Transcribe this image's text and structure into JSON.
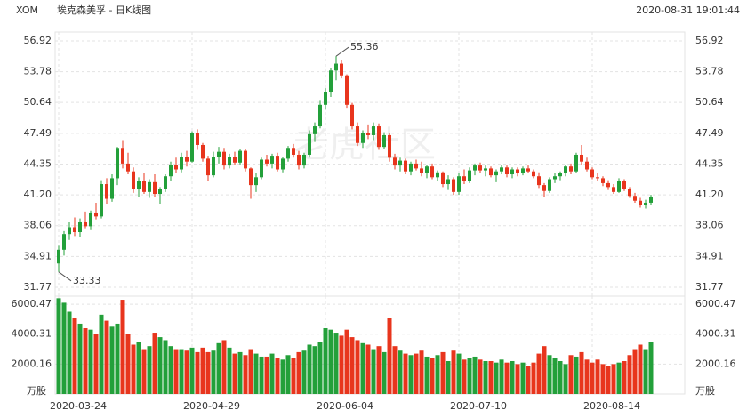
{
  "chart_data": {
    "type": "candlestick",
    "symbol": "XOM",
    "title": "埃克森美孚 - 日K线图",
    "timestamp": "2020-08-31 19:01:44",
    "watermark": "老虎社区",
    "up_color": "#23a03a",
    "down_color": "#e8351d",
    "categories": [
      "2020-03-24",
      null,
      null,
      null,
      null,
      null,
      null,
      null,
      null,
      null,
      null,
      null,
      null,
      null,
      null,
      null,
      null,
      null,
      null,
      null,
      null,
      null,
      null,
      null,
      null,
      "2020-04-29",
      null,
      null,
      null,
      null,
      null,
      null,
      null,
      null,
      null,
      null,
      null,
      null,
      null,
      null,
      null,
      null,
      null,
      null,
      null,
      null,
      null,
      null,
      null,
      null,
      "2020-06-04",
      null,
      null,
      null,
      null,
      null,
      null,
      null,
      null,
      null,
      null,
      null,
      null,
      null,
      null,
      null,
      null,
      null,
      null,
      null,
      null,
      null,
      null,
      null,
      null,
      "2020-07-10",
      null,
      null,
      null,
      null,
      null,
      null,
      null,
      null,
      null,
      null,
      null,
      null,
      null,
      null,
      null,
      null,
      null,
      null,
      null,
      null,
      null,
      null,
      null,
      null,
      "2020-08-14",
      null,
      null,
      null,
      null,
      null,
      null,
      null,
      null,
      null,
      null,
      null
    ],
    "candles": [
      [
        34.2,
        36.0,
        33.33,
        35.6
      ],
      [
        35.6,
        37.5,
        35.0,
        37.2
      ],
      [
        37.2,
        38.4,
        36.6,
        37.9
      ],
      [
        37.9,
        38.9,
        37.0,
        37.4
      ],
      [
        37.4,
        38.8,
        36.9,
        38.4
      ],
      [
        38.4,
        39.5,
        37.8,
        38.0
      ],
      [
        38.0,
        39.6,
        37.6,
        39.4
      ],
      [
        39.4,
        40.4,
        38.7,
        39.0
      ],
      [
        39.0,
        42.7,
        38.8,
        42.3
      ],
      [
        42.3,
        42.9,
        40.3,
        40.8
      ],
      [
        40.8,
        43.3,
        40.5,
        42.9
      ],
      [
        42.9,
        46.1,
        42.2,
        46.0
      ],
      [
        46.0,
        46.8,
        43.9,
        44.4
      ],
      [
        44.4,
        45.5,
        43.3,
        43.6
      ],
      [
        43.6,
        44.0,
        41.4,
        41.8
      ],
      [
        41.8,
        43.0,
        41.0,
        42.6
      ],
      [
        42.6,
        43.4,
        41.3,
        41.5
      ],
      [
        41.5,
        42.8,
        40.9,
        42.5
      ],
      [
        42.5,
        43.3,
        41.0,
        41.3
      ],
      [
        41.3,
        42.0,
        40.3,
        41.8
      ],
      [
        41.8,
        43.3,
        41.5,
        43.1
      ],
      [
        43.1,
        44.6,
        42.6,
        44.3
      ],
      [
        44.3,
        45.0,
        43.4,
        43.8
      ],
      [
        43.8,
        45.5,
        43.5,
        45.1
      ],
      [
        45.1,
        45.7,
        44.1,
        44.6
      ],
      [
        44.6,
        47.7,
        44.5,
        47.5
      ],
      [
        47.5,
        47.9,
        45.8,
        46.3
      ],
      [
        46.3,
        46.5,
        44.6,
        44.9
      ],
      [
        44.9,
        45.2,
        42.6,
        43.2
      ],
      [
        43.2,
        45.6,
        43.0,
        45.1
      ],
      [
        45.1,
        46.1,
        44.4,
        45.6
      ],
      [
        45.6,
        46.0,
        43.8,
        44.2
      ],
      [
        44.2,
        45.4,
        43.9,
        45.1
      ],
      [
        45.1,
        45.6,
        44.3,
        44.5
      ],
      [
        44.5,
        45.9,
        44.3,
        45.7
      ],
      [
        45.7,
        45.9,
        43.6,
        43.9
      ],
      [
        43.9,
        44.0,
        40.8,
        42.2
      ],
      [
        42.2,
        43.4,
        41.5,
        43.0
      ],
      [
        43.0,
        45.0,
        42.8,
        44.8
      ],
      [
        44.8,
        45.3,
        44.1,
        44.4
      ],
      [
        44.4,
        45.4,
        43.9,
        45.2
      ],
      [
        45.2,
        45.5,
        43.6,
        43.8
      ],
      [
        43.8,
        45.1,
        43.5,
        44.9
      ],
      [
        44.9,
        46.2,
        44.6,
        46.0
      ],
      [
        46.0,
        46.4,
        45.0,
        45.3
      ],
      [
        45.3,
        45.7,
        43.8,
        44.2
      ],
      [
        44.2,
        45.5,
        43.9,
        45.3
      ],
      [
        45.3,
        47.8,
        45.0,
        47.4
      ],
      [
        47.4,
        48.6,
        46.6,
        48.2
      ],
      [
        48.2,
        50.8,
        48.0,
        50.4
      ],
      [
        50.4,
        52.1,
        49.9,
        51.7
      ],
      [
        51.7,
        54.2,
        51.2,
        53.9
      ],
      [
        53.9,
        55.36,
        52.9,
        54.6
      ],
      [
        54.6,
        55.0,
        53.1,
        53.4
      ],
      [
        53.4,
        53.5,
        50.1,
        50.4
      ],
      [
        50.4,
        50.6,
        47.9,
        48.2
      ],
      [
        48.2,
        48.6,
        46.2,
        46.5
      ],
      [
        46.5,
        47.8,
        46.0,
        47.5
      ],
      [
        47.5,
        48.4,
        46.9,
        47.3
      ],
      [
        47.3,
        48.6,
        46.8,
        48.2
      ],
      [
        48.2,
        48.5,
        45.8,
        46.1
      ],
      [
        46.1,
        47.6,
        45.9,
        47.3
      ],
      [
        47.3,
        47.5,
        44.6,
        45.0
      ],
      [
        45.0,
        45.4,
        43.8,
        44.2
      ],
      [
        44.2,
        45.0,
        43.6,
        44.7
      ],
      [
        44.7,
        44.9,
        43.3,
        43.6
      ],
      [
        43.6,
        44.6,
        43.2,
        44.4
      ],
      [
        44.4,
        44.8,
        43.7,
        43.9
      ],
      [
        43.9,
        44.6,
        43.1,
        43.4
      ],
      [
        43.4,
        44.3,
        42.9,
        44.1
      ],
      [
        44.1,
        44.4,
        42.8,
        43.0
      ],
      [
        43.0,
        43.7,
        42.6,
        43.5
      ],
      [
        43.5,
        43.6,
        42.0,
        42.3
      ],
      [
        42.3,
        43.2,
        41.7,
        42.8
      ],
      [
        42.8,
        43.0,
        41.2,
        41.5
      ],
      [
        41.5,
        43.4,
        41.2,
        43.1
      ],
      [
        43.1,
        43.8,
        42.3,
        42.6
      ],
      [
        42.6,
        44.0,
        42.4,
        43.7
      ],
      [
        43.7,
        44.4,
        43.2,
        44.2
      ],
      [
        44.2,
        44.5,
        43.4,
        43.7
      ],
      [
        43.7,
        44.2,
        43.1,
        43.9
      ],
      [
        43.9,
        44.1,
        43.0,
        43.2
      ],
      [
        43.2,
        43.8,
        42.5,
        43.6
      ],
      [
        43.6,
        44.3,
        43.3,
        44.0
      ],
      [
        44.0,
        44.2,
        43.0,
        43.3
      ],
      [
        43.3,
        44.0,
        42.9,
        43.8
      ],
      [
        43.8,
        44.0,
        43.1,
        43.4
      ],
      [
        43.4,
        44.1,
        43.2,
        43.9
      ],
      [
        43.9,
        44.2,
        43.4,
        43.6
      ],
      [
        43.6,
        43.8,
        42.9,
        43.1
      ],
      [
        43.1,
        43.5,
        41.9,
        42.2
      ],
      [
        42.2,
        42.4,
        41.0,
        41.6
      ],
      [
        41.6,
        43.0,
        41.4,
        42.8
      ],
      [
        42.8,
        43.4,
        42.4,
        43.1
      ],
      [
        43.1,
        43.6,
        42.7,
        43.4
      ],
      [
        43.4,
        44.3,
        43.1,
        44.1
      ],
      [
        44.1,
        44.4,
        43.3,
        43.6
      ],
      [
        43.6,
        45.5,
        43.4,
        45.3
      ],
      [
        45.3,
        46.3,
        44.3,
        44.6
      ],
      [
        44.6,
        45.0,
        43.6,
        43.8
      ],
      [
        43.8,
        44.0,
        42.8,
        43.0
      ],
      [
        43.0,
        43.4,
        42.6,
        42.9
      ],
      [
        42.9,
        43.1,
        42.1,
        42.4
      ],
      [
        42.4,
        42.7,
        41.7,
        42.0
      ],
      [
        42.0,
        42.3,
        41.3,
        41.5
      ],
      [
        41.5,
        42.9,
        41.4,
        42.6
      ],
      [
        42.6,
        42.8,
        41.6,
        41.8
      ],
      [
        41.8,
        42.0,
        40.9,
        41.1
      ],
      [
        41.1,
        41.4,
        40.4,
        40.6
      ],
      [
        40.6,
        40.9,
        39.9,
        40.2
      ],
      [
        40.2,
        40.7,
        39.8,
        40.4
      ],
      [
        40.4,
        41.2,
        40.2,
        41.0
      ]
    ],
    "volume": [
      6400,
      6100,
      5500,
      5100,
      4700,
      4400,
      4300,
      4000,
      5300,
      4900,
      4500,
      4700,
      6300,
      4000,
      3300,
      3500,
      3000,
      3200,
      4100,
      3800,
      3600,
      3200,
      3000,
      3000,
      2900,
      3100,
      2800,
      3100,
      2800,
      2900,
      3400,
      3600,
      3100,
      2700,
      2800,
      2600,
      3000,
      2700,
      2500,
      2500,
      2700,
      2400,
      2300,
      2600,
      2400,
      2800,
      2900,
      3300,
      3200,
      3500,
      4400,
      4300,
      4100,
      3900,
      4300,
      3800,
      3600,
      3400,
      3300,
      3000,
      3200,
      2800,
      5100,
      3200,
      2900,
      2700,
      2600,
      2700,
      2900,
      2500,
      2400,
      2600,
      2800,
      2200,
      2900,
      2700,
      2300,
      2400,
      2500,
      2300,
      2200,
      2200,
      2100,
      2300,
      2100,
      2200,
      2000,
      2100,
      1900,
      2100,
      2700,
      3200,
      2600,
      2400,
      2200,
      2000,
      2600,
      2500,
      2800,
      2300,
      2100,
      2300,
      2000,
      1900,
      2000,
      2100,
      2200,
      2600,
      3000,
      3300,
      3000,
      3500
    ],
    "annotations": [
      55.36,
      33.33
    ],
    "ylim": [
      31.77,
      56.92
    ],
    "yticks": [
      56.92,
      53.78,
      50.64,
      47.49,
      44.35,
      {
        "value": 41.2,
        "label": "41.20"
      },
      38.06,
      34.91,
      31.77
    ],
    "volume_unit": "万股",
    "vlim": [
      0,
      6540
    ],
    "vticks": [
      6000.47,
      4000.31,
      2000.16
    ],
    "grid": true
  }
}
